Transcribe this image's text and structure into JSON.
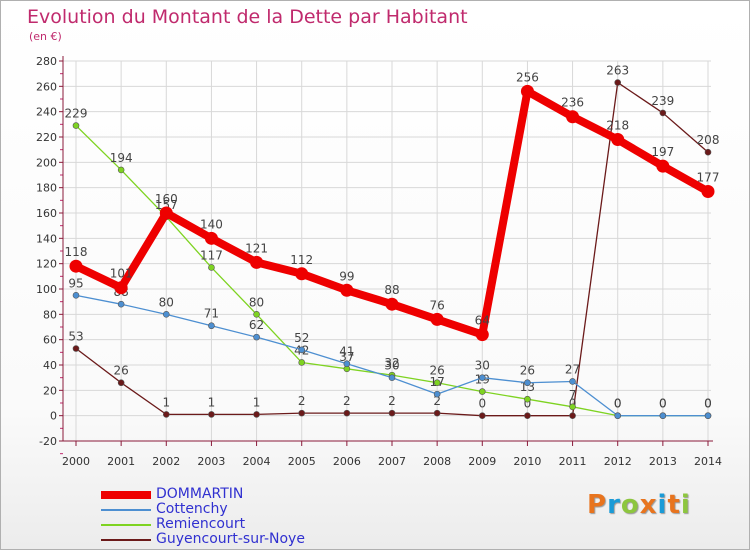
{
  "title": "Evolution du Montant de la Dette par Habitant",
  "subtitle": "(en €)",
  "logo": {
    "text": "Proxiti",
    "letters": [
      "P",
      "r",
      "o",
      "x",
      "i",
      "t",
      "i"
    ],
    "colors": [
      "#e8741e",
      "#1a9bd7",
      "#8dc63f",
      "#e8741e",
      "#1a9bd7",
      "#e8741e",
      "#8dc63f"
    ]
  },
  "chart_data": {
    "type": "line",
    "x": [
      "2000",
      "2001",
      "2002",
      "2003",
      "2004",
      "2005",
      "2006",
      "2007",
      "2008",
      "2009",
      "2010",
      "2011",
      "2012",
      "2013",
      "2014"
    ],
    "ylim": [
      -20,
      280
    ],
    "yticks": [
      -20,
      0,
      20,
      40,
      60,
      80,
      100,
      120,
      140,
      160,
      180,
      200,
      220,
      240,
      260,
      280
    ],
    "grid": true,
    "series": [
      {
        "name": "DOMMARTIN",
        "color": "#ee0000",
        "text_color": "#3030d0",
        "values": [
          118,
          101,
          160,
          140,
          121,
          112,
          99,
          88,
          76,
          64,
          256,
          236,
          218,
          197,
          177
        ],
        "labels": [
          "118",
          "101",
          "160",
          "140",
          "121",
          "112",
          "99",
          "88",
          "76",
          "64",
          "256",
          "236",
          "218",
          "197",
          "177"
        ]
      },
      {
        "name": "Cottenchy",
        "color": "#4d8fd1",
        "text_color": "#3030d0",
        "values": [
          95,
          88,
          80,
          71,
          62,
          52,
          41,
          30,
          17,
          30,
          26,
          27,
          0,
          0,
          0
        ],
        "labels": [
          "95",
          "88",
          "80",
          "71",
          "62",
          "52",
          "41",
          "30",
          "17",
          "30",
          "26",
          "27",
          "0",
          "0",
          "0"
        ]
      },
      {
        "name": "Remiencourt",
        "color": "#7ed321",
        "text_color": "#3030d0",
        "values": [
          229,
          194,
          157,
          117,
          80,
          42,
          37,
          32,
          26,
          19,
          13,
          7,
          0,
          0,
          0
        ],
        "labels": [
          "229",
          "194",
          "157",
          "117",
          "80",
          "42",
          "37",
          "32",
          "26",
          "19",
          "13",
          "7",
          "0",
          "0",
          "0"
        ]
      },
      {
        "name": "Guyencourt-sur-Noye",
        "color": "#6b1a1a",
        "text_color": "#3030d0",
        "values": [
          53,
          26,
          1,
          1,
          1,
          2,
          2,
          2,
          2,
          0,
          0,
          0,
          263,
          239,
          208
        ],
        "labels": [
          "53",
          "26",
          "1",
          "1",
          "1",
          "2",
          "2",
          "2",
          "2",
          "0",
          "0",
          "0",
          "263",
          "239",
          "208"
        ]
      }
    ]
  }
}
